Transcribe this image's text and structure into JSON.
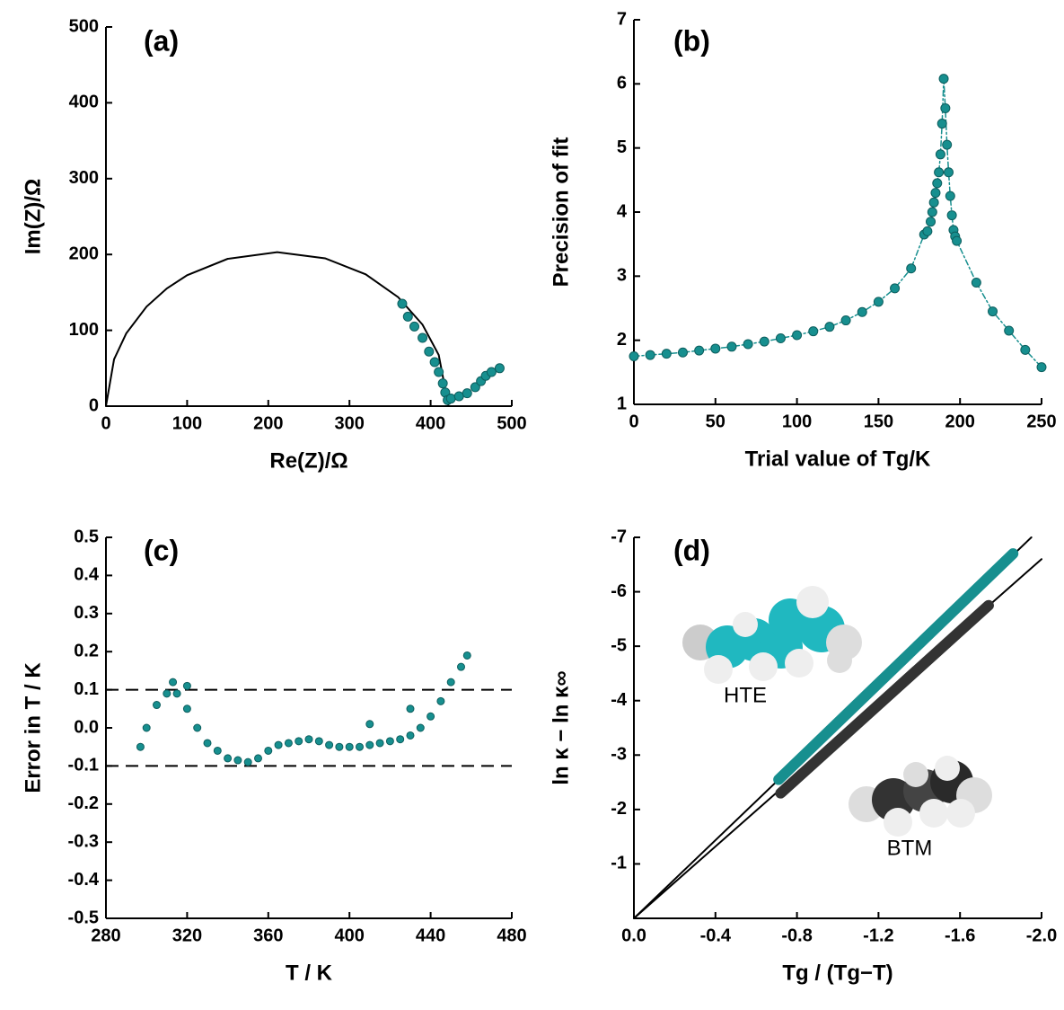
{
  "chart_data": [
    {
      "type": "scatter",
      "label": "(a)",
      "xlabel": "Re(Z)/Ω",
      "ylabel": "Im(Z)/Ω",
      "xlim": [
        0,
        500
      ],
      "ylim": [
        0,
        500
      ],
      "xticks": [
        0,
        100,
        200,
        300,
        400,
        500
      ],
      "yticks": [
        0,
        100,
        200,
        300,
        400,
        500
      ],
      "series": [
        {
          "mode": "line",
          "color": "#000000",
          "x": [
            0,
            10,
            25,
            50,
            75,
            100,
            150,
            211,
            270,
            320,
            360,
            390,
            410,
            422
          ],
          "y": [
            0,
            61.8,
            95.9,
            131.2,
            155.2,
            172.6,
            194.3,
            203,
            194.9,
            173.8,
            143.7,
            107.5,
            67.5,
            0
          ]
        },
        {
          "mode": "markers",
          "color": "#178f8f",
          "x": [
            365,
            372,
            380,
            390,
            398,
            405,
            410,
            415,
            418,
            421,
            425,
            435,
            445,
            455,
            462,
            468,
            475,
            485
          ],
          "y": [
            135,
            118,
            105,
            90,
            72,
            58,
            45,
            30,
            18,
            8,
            10,
            13,
            17,
            25,
            33,
            40,
            45,
            50
          ]
        }
      ]
    },
    {
      "type": "line",
      "label": "(b)",
      "xlabel": "Trial value of Tg/K",
      "ylabel": "Precision of fit",
      "xlim": [
        0,
        250
      ],
      "ylim": [
        1,
        7
      ],
      "xticks": [
        0,
        50,
        100,
        150,
        200,
        250
      ],
      "yticks": [
        1,
        2,
        3,
        4,
        5,
        6,
        7
      ],
      "series": [
        {
          "mode": "line+markers",
          "color": "#178f8f",
          "x": [
            0,
            10,
            20,
            30,
            40,
            50,
            60,
            70,
            80,
            90,
            100,
            110,
            120,
            130,
            140,
            150,
            160,
            170,
            178,
            180,
            182,
            183,
            184,
            185,
            186,
            187,
            188,
            189,
            190,
            191,
            192,
            193,
            194,
            195,
            196,
            197,
            198,
            210,
            220,
            230,
            240,
            250
          ],
          "y": [
            1.75,
            1.77,
            1.79,
            1.81,
            1.84,
            1.87,
            1.9,
            1.94,
            1.98,
            2.03,
            2.08,
            2.14,
            2.21,
            2.31,
            2.44,
            2.6,
            2.81,
            3.12,
            3.65,
            3.7,
            3.85,
            4.0,
            4.15,
            4.3,
            4.45,
            4.62,
            4.9,
            5.38,
            6.08,
            5.62,
            5.05,
            4.62,
            4.25,
            3.95,
            3.72,
            3.62,
            3.55,
            2.9,
            2.45,
            2.15,
            1.85,
            1.58
          ]
        }
      ]
    },
    {
      "type": "scatter",
      "label": "(c)",
      "xlabel": "T / K",
      "ylabel": "Error in T / K",
      "xlim": [
        280,
        480
      ],
      "ylim": [
        -0.5,
        0.5
      ],
      "xticks": [
        280,
        320,
        360,
        400,
        440,
        480
      ],
      "yticks": [
        -0.5,
        -0.4,
        -0.3,
        -0.2,
        -0.1,
        {
          "value": 0,
          "label": "0.0"
        },
        0.1,
        0.2,
        0.3,
        0.4,
        0.5
      ],
      "hlines": [
        0.1,
        -0.1
      ],
      "series": [
        {
          "mode": "dots",
          "color": "#178f8f",
          "x": [
            297,
            300,
            305,
            310,
            313,
            315,
            320,
            320,
            325,
            330,
            335,
            340,
            345,
            350,
            355,
            360,
            365,
            370,
            375,
            380,
            385,
            390,
            395,
            400,
            405,
            410,
            410,
            415,
            420,
            425,
            430,
            430,
            435,
            440,
            445,
            450,
            455,
            458
          ],
          "y": [
            -0.05,
            0.0,
            0.06,
            0.09,
            0.12,
            0.09,
            0.05,
            0.11,
            0.0,
            -0.04,
            -0.06,
            -0.08,
            -0.085,
            -0.09,
            -0.08,
            -0.06,
            -0.045,
            -0.04,
            -0.035,
            -0.03,
            -0.035,
            -0.045,
            -0.05,
            -0.05,
            -0.05,
            -0.045,
            0.01,
            -0.04,
            -0.035,
            -0.03,
            -0.02,
            0.05,
            0.0,
            0.03,
            0.07,
            0.12,
            0.16,
            0.19
          ]
        }
      ]
    },
    {
      "type": "scatter",
      "label": "(d)",
      "xlabel": "Tg / (Tg−T)",
      "ylabel": "ln κ − ln κ∞",
      "xlim": [
        0,
        -2.0
      ],
      "ylim": [
        0,
        -7
      ],
      "xticks": [
        {
          "value": 0,
          "label": "0.0"
        },
        -0.4,
        -0.8,
        -1.2,
        -1.6,
        {
          "value": -2.0,
          "label": "-2.0"
        }
      ],
      "yticks": [
        -1,
        -2,
        -3,
        -4,
        -5,
        -6,
        -7
      ],
      "annotations": [
        "HTE",
        "BTM"
      ],
      "series": [
        {
          "mode": "line",
          "color": "#000000",
          "x": [
            0,
            -1.95
          ],
          "y": [
            0,
            -7.0
          ]
        },
        {
          "mode": "line",
          "color": "#000000",
          "x": [
            0,
            -2.0
          ],
          "y": [
            0,
            -6.6
          ]
        },
        {
          "mode": "thick",
          "color": "#178f8f",
          "x": [
            -0.71,
            -1.86
          ],
          "y": [
            -2.55,
            -6.7
          ]
        },
        {
          "mode": "thick",
          "color": "#333333",
          "x": [
            -0.72,
            -1.74
          ],
          "y": [
            -2.3,
            -5.75
          ]
        }
      ]
    }
  ]
}
